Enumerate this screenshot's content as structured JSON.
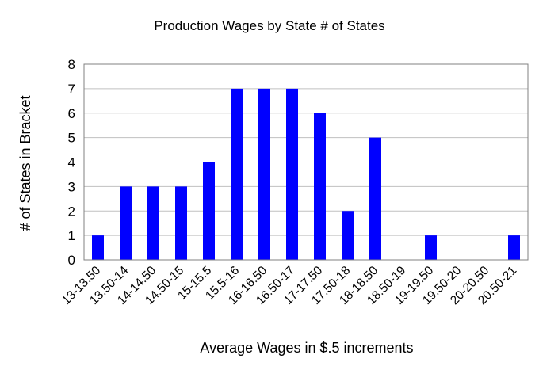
{
  "chart_data": {
    "type": "bar",
    "title": "Production Wages by State # of States",
    "xlabel": "Average Wages in $.5 increments",
    "ylabel": "# of States in Bracket",
    "categories": [
      "13-13.50",
      "13.50-14",
      "14-14.50",
      "14.50-15",
      "15-15.5",
      "15.5-16",
      "16-16.50",
      "16.50-17",
      "17-17.50",
      "17.50-18",
      "18-18.50",
      "18.50-19",
      "19-19.50",
      "19.50-20",
      "20-20.50",
      "20.50-21"
    ],
    "values": [
      1,
      3,
      3,
      3,
      4,
      7,
      7,
      7,
      6,
      2,
      5,
      0,
      1,
      0,
      0,
      1
    ],
    "ylim": [
      0,
      8
    ],
    "yticks": [
      "0",
      "1",
      "2",
      "3",
      "4",
      "5",
      "6",
      "7",
      "8"
    ],
    "grid": true,
    "legend": "none",
    "bar_color": "#0000ff",
    "grid_color": "#c0c0c0"
  }
}
